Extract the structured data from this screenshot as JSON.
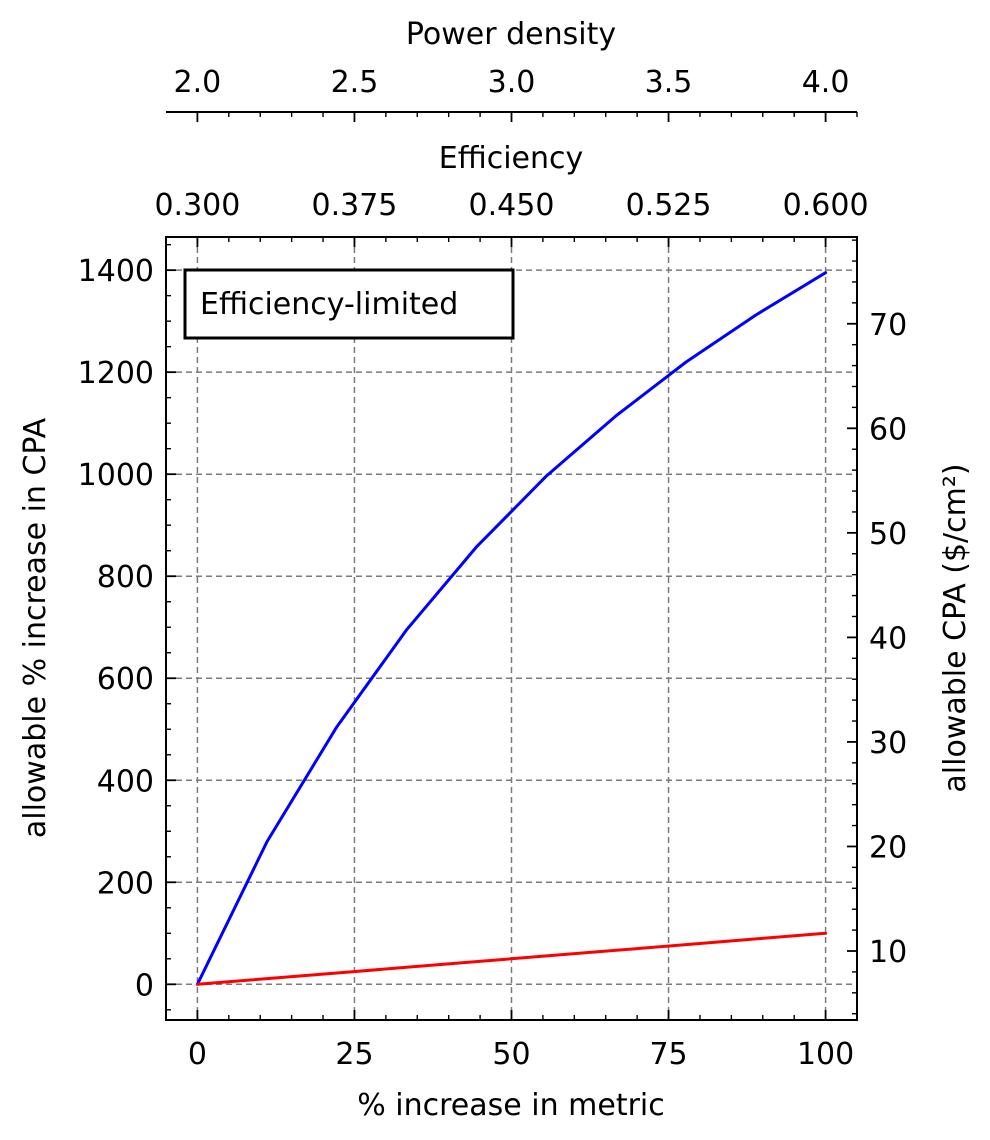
{
  "chart_data": {
    "type": "line",
    "annotation": "Efficiency-limited",
    "xlabel": "% increase in metric",
    "ylabel": "allowable % increase in CPA",
    "ylabel_right": "allowable CPA ($/cm²)",
    "top_axis_1": {
      "label": "Efficiency",
      "color": "#0000ff",
      "range": [
        0.3,
        0.6
      ],
      "ticks": [
        "0.300",
        "0.375",
        "0.450",
        "0.525",
        "0.600"
      ]
    },
    "top_axis_2": {
      "label": "Power density",
      "color": "#ff0000",
      "range": [
        2.0,
        4.0
      ],
      "ticks": [
        "2.0",
        "2.5",
        "3.0",
        "3.5",
        "4.0"
      ]
    },
    "xlim": [
      -5,
      105
    ],
    "ylim": [
      -70,
      1465
    ],
    "ylim_right": [
      3.4,
      78.3
    ],
    "xticks": [
      0,
      25,
      50,
      75,
      100
    ],
    "yticks": [
      0,
      200,
      400,
      600,
      800,
      1000,
      1200,
      1400
    ],
    "yticks_right": [
      10,
      20,
      30,
      40,
      50,
      60,
      70
    ],
    "grid": true,
    "x": [
      0,
      11.1,
      22.2,
      33.3,
      44.4,
      55.6,
      66.7,
      77.8,
      88.9,
      100
    ],
    "series": [
      {
        "color": "#0000ff",
        "values": [
          0,
          280,
          505,
          695,
          857,
          997,
          1115,
          1220,
          1312,
          1395
        ]
      },
      {
        "color": "#ff0000",
        "values": [
          0,
          11.1,
          22.2,
          33.3,
          44.4,
          55.6,
          66.7,
          77.8,
          88.9,
          100
        ]
      }
    ]
  }
}
